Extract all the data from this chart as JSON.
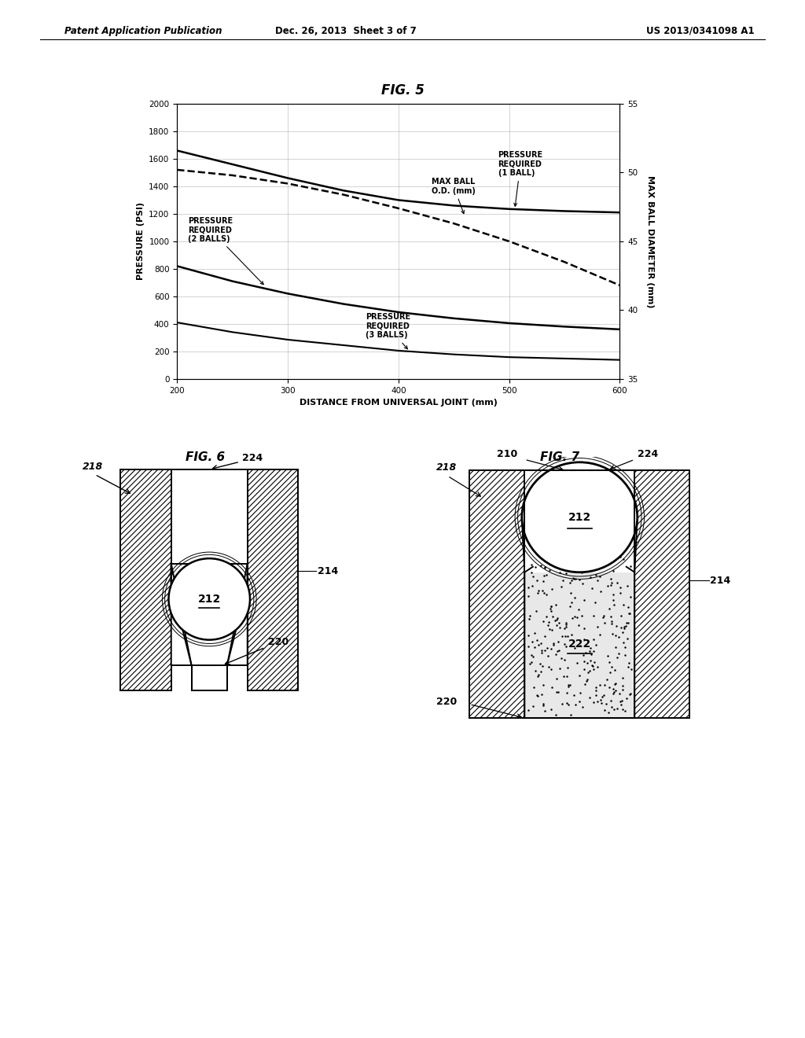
{
  "header_left": "Patent Application Publication",
  "header_center": "Dec. 26, 2013  Sheet 3 of 7",
  "header_right": "US 2013/0341098 A1",
  "bg_color": "#ffffff",
  "fig5_title": "FIG. 5",
  "fig6_title": "FIG. 6",
  "fig7_title": "FIG. 7",
  "graph": {
    "xlim": [
      200,
      600
    ],
    "ylim_left": [
      0,
      2000
    ],
    "ylim_right": [
      35,
      55
    ],
    "xlabel": "DISTANCE FROM UNIVERSAL JOINT (mm)",
    "ylabel_left": "PRESSURE (PSI)",
    "ylabel_right": "MAX BALL DIAMETER (mm)",
    "xticks": [
      200,
      300,
      400,
      500,
      600
    ],
    "yticks_left": [
      0,
      200,
      400,
      600,
      800,
      1000,
      1200,
      1400,
      1600,
      1800,
      2000
    ],
    "yticks_right": [
      35,
      40,
      45,
      50,
      55
    ],
    "p1_x": [
      200,
      250,
      300,
      350,
      400,
      450,
      500,
      550,
      600
    ],
    "p1_y": [
      1660,
      1560,
      1460,
      1370,
      1300,
      1260,
      1235,
      1220,
      1210
    ],
    "p2_x": [
      200,
      250,
      300,
      350,
      400,
      450,
      500,
      550,
      600
    ],
    "p2_y": [
      820,
      710,
      620,
      545,
      485,
      440,
      405,
      380,
      360
    ],
    "p3_x": [
      200,
      250,
      300,
      350,
      400,
      450,
      500,
      550,
      600
    ],
    "p3_y": [
      410,
      340,
      285,
      245,
      205,
      178,
      158,
      148,
      138
    ],
    "mb_x": [
      200,
      250,
      300,
      350,
      400,
      450,
      500,
      550,
      600
    ],
    "mb_y": [
      50.2,
      49.8,
      49.2,
      48.4,
      47.4,
      46.3,
      45.0,
      43.5,
      41.8
    ]
  }
}
